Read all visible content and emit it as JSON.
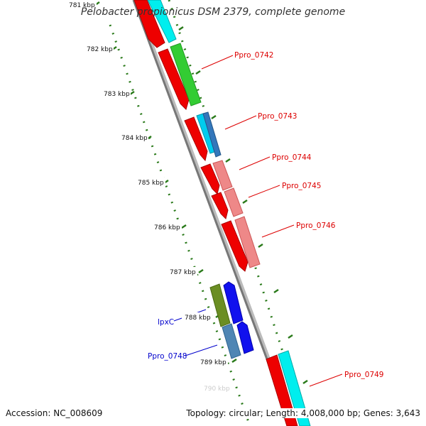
{
  "title": "Pelobacter propionicus DSM 2379, complete genome",
  "footer": {
    "accession": "Accession: NC_008609",
    "summary": "Topology: circular; Length: 4,008,000 bp; Genes: 3,643"
  },
  "ruler_labels": [
    "781 kbp",
    "782 kbp",
    "783 kbp",
    "784 kbp",
    "785 kbp",
    "786 kbp",
    "787 kbp",
    "788 kbp",
    "789 kbp",
    "790 kbp"
  ],
  "gene_labels": {
    "ppro0742": "Ppro_0742",
    "ppro0743": "Ppro_0743",
    "ppro0744": "Ppro_0744",
    "ppro0745": "Ppro_0745",
    "ppro0746": "Ppro_0746",
    "lpxc": "lpxC",
    "ppro0748": "Ppro_0748",
    "ppro0749": "Ppro_0749"
  },
  "colors": {
    "forward_label": "#dd0000",
    "reverse_label": "#0000cc",
    "ruler": "#2a7a1a",
    "backbone": "#888888"
  }
}
